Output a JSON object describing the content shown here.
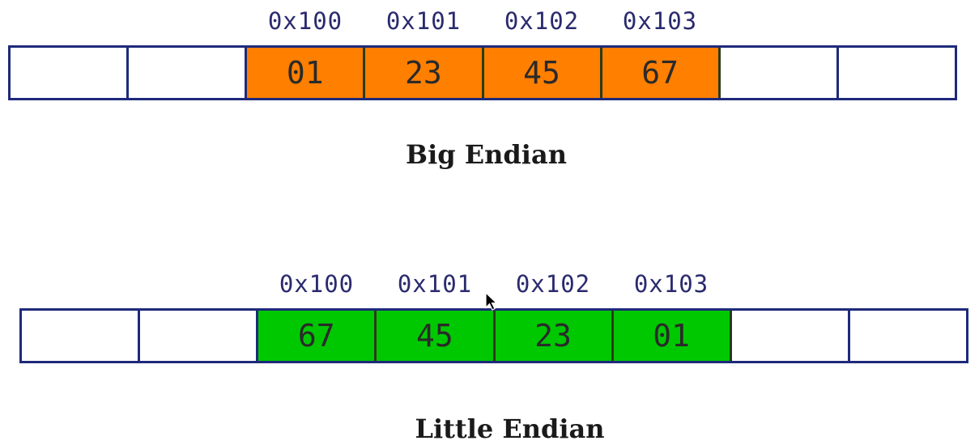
{
  "big_endian": {
    "caption": "Big Endian",
    "addresses": [
      "0x100",
      "0x101",
      "0x102",
      "0x103"
    ],
    "cells": [
      "",
      "",
      "01",
      "23",
      "45",
      "67",
      "",
      ""
    ],
    "fill_color": "#ff7f00"
  },
  "little_endian": {
    "caption": "Little Endian",
    "addresses": [
      "0x100",
      "0x101",
      "0x102",
      "0x103"
    ],
    "cells": [
      "",
      "",
      "67",
      "45",
      "23",
      "01",
      "",
      ""
    ],
    "fill_color": "#00c800"
  },
  "colors": {
    "border": "#1e2a7a",
    "address_text": "#2a2a6e"
  },
  "cursor_icon": "mouse-pointer-icon"
}
